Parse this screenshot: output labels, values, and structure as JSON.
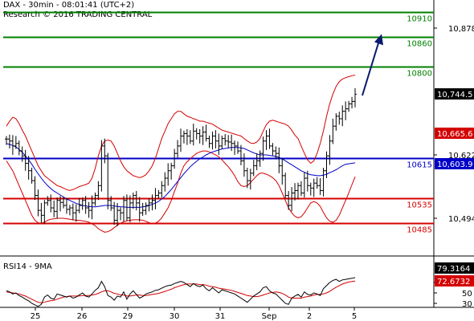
{
  "header": {
    "line1": "DAX - 30min - 08:01:41 (UTC+2)",
    "line2": "Research © 2016 TRADING CENTRAL"
  },
  "colors": {
    "resistance": "#008000",
    "support": "#d40000",
    "pivot": "#0000c8",
    "bollinger": "#d40000",
    "ma": "#0000c8",
    "price": "#000000",
    "arrow": "#0a1a6e",
    "rsi_line": "#000000",
    "rsi_ma": "#d40000"
  },
  "chart_data": [
    {
      "type": "candlestick",
      "title": "DAX - 30min",
      "y_axis_ticks": [
        10878,
        10622,
        10494
      ],
      "y_axis_tick_labels": [
        "10,878",
        "10,622",
        "10,494"
      ],
      "x_tick_labels": [
        "25",
        "26",
        "29",
        "30",
        "31",
        "Sep",
        "2",
        "5"
      ],
      "levels": [
        {
          "name": "resistance",
          "value": 10910,
          "label": "10910",
          "color": "#008000"
        },
        {
          "name": "resistance",
          "value": 10860,
          "label": "10860",
          "color": "#008000"
        },
        {
          "name": "resistance",
          "value": 10800,
          "label": "10800",
          "color": "#008000"
        },
        {
          "name": "pivot",
          "value": 10615,
          "label": "10615",
          "color": "#0000c8"
        },
        {
          "name": "support",
          "value": 10535,
          "label": "10535",
          "color": "#d40000"
        },
        {
          "name": "support",
          "value": 10485,
          "label": "10485",
          "color": "#d40000"
        }
      ],
      "value_tags": [
        {
          "label": "10,744.5",
          "value": 10744.5,
          "style": "dark"
        },
        {
          "label": "10,665.6",
          "value": 10665.6,
          "style": "red"
        },
        {
          "label": "10,603.9",
          "value": 10603.9,
          "style": "blue"
        }
      ],
      "price_close": [
        10654,
        10650,
        10640,
        10645,
        10630,
        10620,
        10605,
        10590,
        10570,
        10540,
        10510,
        10500,
        10525,
        10530,
        10515,
        10508,
        10530,
        10526,
        10520,
        10512,
        10515,
        10505,
        10510,
        10520,
        10530,
        10515,
        10510,
        10525,
        10540,
        10560,
        10640,
        10620,
        10530,
        10515,
        10490,
        10510,
        10505,
        10530,
        10495,
        10525,
        10540,
        10525,
        10505,
        10510,
        10520,
        10525,
        10530,
        10540,
        10545,
        10560,
        10575,
        10590,
        10600,
        10625,
        10640,
        10660,
        10665,
        10660,
        10650,
        10670,
        10665,
        10660,
        10668,
        10655,
        10645,
        10660,
        10650,
        10640,
        10655,
        10650,
        10648,
        10645,
        10640,
        10630,
        10610,
        10590,
        10570,
        10585,
        10600,
        10610,
        10625,
        10650,
        10660,
        10640,
        10630,
        10625,
        10600,
        10580,
        10540,
        10520,
        10545,
        10550,
        10560,
        10545,
        10575,
        10560,
        10555,
        10565,
        10560,
        10550,
        10590,
        10620,
        10650,
        10680,
        10700,
        10695,
        10710,
        10715,
        10725,
        10730,
        10744.5
      ],
      "bollinger_upper": [
        10680,
        10690,
        10698,
        10695,
        10685,
        10672,
        10660,
        10645,
        10630,
        10615,
        10600,
        10590,
        10580,
        10575,
        10570,
        10565,
        10560,
        10558,
        10555,
        10552,
        10550,
        10552,
        10555,
        10558,
        10560,
        10562,
        10565,
        10575,
        10595,
        10620,
        10640,
        10650,
        10652,
        10650,
        10640,
        10625,
        10610,
        10598,
        10590,
        10585,
        10580,
        10578,
        10576,
        10578,
        10582,
        10590,
        10600,
        10615,
        10635,
        10655,
        10670,
        10685,
        10695,
        10705,
        10710,
        10710,
        10705,
        10700,
        10698,
        10695,
        10693,
        10690,
        10690,
        10688,
        10686,
        10684,
        10680,
        10676,
        10672,
        10670,
        10668,
        10666,
        10664,
        10662,
        10660,
        10655,
        10650,
        10646,
        10645,
        10648,
        10655,
        10670,
        10683,
        10690,
        10692,
        10690,
        10688,
        10686,
        10684,
        10680,
        10672,
        10662,
        10655,
        10640,
        10625,
        10612,
        10605,
        10610,
        10625,
        10645,
        10670,
        10700,
        10725,
        10745,
        10760,
        10770,
        10775,
        10778,
        10780,
        10782,
        10783
      ],
      "bollinger_lower": [
        10610,
        10600,
        10590,
        10575,
        10560,
        10545,
        10530,
        10515,
        10500,
        10490,
        10485,
        10484,
        10486,
        10490,
        10492,
        10493,
        10494,
        10494,
        10494,
        10493,
        10492,
        10491,
        10490,
        10490,
        10489,
        10488,
        10486,
        10483,
        10479,
        10473,
        10469,
        10466,
        10467,
        10470,
        10475,
        10480,
        10484,
        10487,
        10489,
        10490,
        10491,
        10491,
        10491,
        10490,
        10488,
        10485,
        10484,
        10484,
        10488,
        10495,
        10505,
        10515,
        10530,
        10548,
        10565,
        10585,
        10600,
        10608,
        10614,
        10620,
        10625,
        10628,
        10630,
        10630,
        10628,
        10625,
        10622,
        10618,
        10612,
        10605,
        10598,
        10590,
        10580,
        10568,
        10560,
        10558,
        10560,
        10566,
        10573,
        10580,
        10585,
        10585,
        10583,
        10580,
        10576,
        10570,
        10560,
        10545,
        10530,
        10515,
        10505,
        10498,
        10495,
        10497,
        10505,
        10515,
        10525,
        10528,
        10525,
        10518,
        10506,
        10495,
        10488,
        10486,
        10490,
        10500,
        10515,
        10530,
        10545,
        10562,
        10578
      ],
      "moving_average": [
        10645,
        10643,
        10641,
        10638,
        10633,
        10627,
        10620,
        10612,
        10603,
        10593,
        10584,
        10575,
        10567,
        10560,
        10554,
        10549,
        10545,
        10541,
        10537,
        10533,
        10530,
        10527,
        10524,
        10522,
        10520,
        10519,
        10518,
        10517,
        10517,
        10518,
        10519,
        10520,
        10520,
        10520,
        10519,
        10518,
        10517,
        10517,
        10516,
        10516,
        10516,
        10516,
        10516,
        10517,
        10518,
        10520,
        10522,
        10525,
        10528,
        10533,
        10538,
        10545,
        10552,
        10560,
        10568,
        10576,
        10584,
        10591,
        10598,
        10604,
        10609,
        10614,
        10618,
        10622,
        10625,
        10628,
        10630,
        10632,
        10634,
        10635,
        10636,
        10637,
        10637,
        10637,
        10636,
        10635,
        10632,
        10629,
        10626,
        10624,
        10622,
        10622,
        10622,
        10621,
        10620,
        10619,
        10617,
        10614,
        10610,
        10606,
        10602,
        10598,
        10594,
        10590,
        10587,
        10584,
        10582,
        10581,
        10580,
        10580,
        10581,
        10583,
        10586,
        10589,
        10592,
        10596,
        10600,
        10603,
        10604,
        10605,
        10606
      ],
      "forecast_arrow": {
        "from": 10742,
        "to": 10866
      }
    },
    {
      "type": "line",
      "title": "RSI14 - 9MA",
      "y_axis_ticks": [
        70,
        50,
        30
      ],
      "y_axis_tick_labels": [
        "70",
        "50",
        "30"
      ],
      "value_tags": [
        {
          "label": "79.3164",
          "value": 79.3164,
          "style": "dark"
        },
        {
          "label": "72.6732",
          "value": 72.6732,
          "style": "red"
        }
      ],
      "rsi": [
        54,
        52,
        48,
        50,
        45,
        42,
        38,
        35,
        30,
        27,
        24,
        28,
        42,
        46,
        40,
        38,
        48,
        46,
        44,
        42,
        44,
        40,
        42,
        46,
        50,
        44,
        42,
        48,
        55,
        60,
        72,
        62,
        45,
        42,
        36,
        44,
        42,
        52,
        38,
        48,
        54,
        47,
        40,
        43,
        48,
        50,
        52,
        55,
        56,
        59,
        62,
        64,
        65,
        68,
        70,
        72,
        70,
        66,
        62,
        68,
        64,
        62,
        65,
        58,
        54,
        60,
        55,
        50,
        56,
        54,
        52,
        50,
        48,
        44,
        40,
        36,
        32,
        38,
        44,
        48,
        52,
        60,
        62,
        54,
        50,
        48,
        42,
        36,
        30,
        28,
        40,
        44,
        47,
        42,
        52,
        47,
        46,
        50,
        48,
        45,
        58,
        64,
        70,
        74,
        76,
        72,
        75,
        76,
        77,
        78,
        79.3164
      ],
      "rsi_ma": [
        52,
        51,
        50,
        49,
        48,
        46,
        44,
        41,
        38,
        35,
        32,
        31,
        32,
        34,
        35,
        36,
        38,
        40,
        42,
        43,
        44,
        44,
        44,
        44,
        45,
        45,
        45,
        46,
        47,
        49,
        52,
        54,
        54,
        52,
        49,
        48,
        46,
        46,
        44,
        44,
        45,
        46,
        46,
        45,
        45,
        46,
        47,
        48,
        49,
        51,
        53,
        55,
        57,
        60,
        62,
        64,
        66,
        67,
        67,
        67,
        67,
        66,
        66,
        65,
        63,
        62,
        61,
        59,
        58,
        57,
        56,
        55,
        53,
        51,
        49,
        47,
        45,
        44,
        43,
        43,
        44,
        46,
        48,
        50,
        51,
        52,
        51,
        49,
        46,
        42,
        40,
        40,
        40,
        40,
        42,
        43,
        44,
        46,
        47,
        47,
        48,
        50,
        53,
        57,
        61,
        64,
        67,
        69,
        71,
        72,
        72.6732
      ]
    }
  ]
}
